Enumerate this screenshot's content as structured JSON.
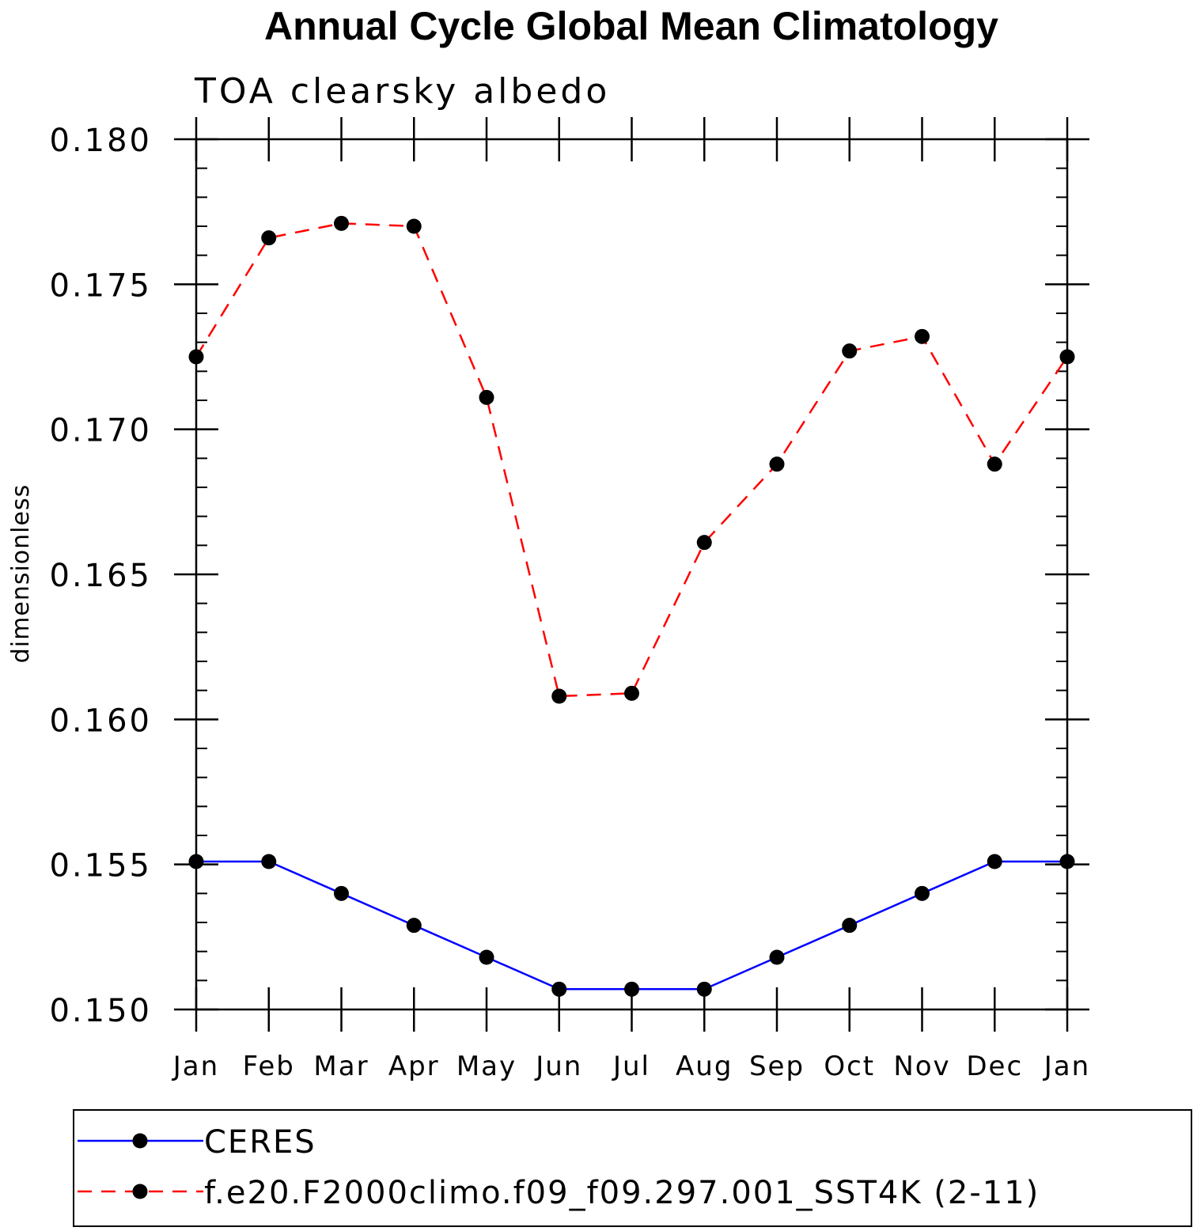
{
  "chart_data": {
    "type": "line",
    "title": "Annual Cycle Global Mean Climatology",
    "subtitle": "TOA clearsky albedo",
    "xlabel": "",
    "ylabel": "dimensionless",
    "categories": [
      "Jan",
      "Feb",
      "Mar",
      "Apr",
      "May",
      "Jun",
      "Jul",
      "Aug",
      "Sep",
      "Oct",
      "Nov",
      "Dec",
      "Jan"
    ],
    "ylim": [
      0.15,
      0.18
    ],
    "yticks": [
      "0.150",
      "0.155",
      "0.160",
      "0.165",
      "0.170",
      "0.175",
      "0.180"
    ],
    "grid": false,
    "legend_position": "bottom",
    "series": [
      {
        "name": "CERES",
        "color": "#0000ff",
        "line_style": "solid",
        "marker": "circle",
        "values": [
          0.1551,
          0.1551,
          0.154,
          0.1529,
          0.1518,
          0.1507,
          0.1507,
          0.1507,
          0.1518,
          0.1529,
          0.154,
          0.1551,
          0.1551
        ]
      },
      {
        "name": "f.e20.F2000climo.f09_f09.297.001_SST4K (2-11)",
        "color": "#ff0000",
        "line_style": "dashed",
        "marker": "circle",
        "values": [
          0.1725,
          0.1766,
          0.1771,
          0.177,
          0.1711,
          0.1608,
          0.1609,
          0.1661,
          0.1688,
          0.1727,
          0.1732,
          0.1688,
          0.1725
        ]
      }
    ]
  }
}
